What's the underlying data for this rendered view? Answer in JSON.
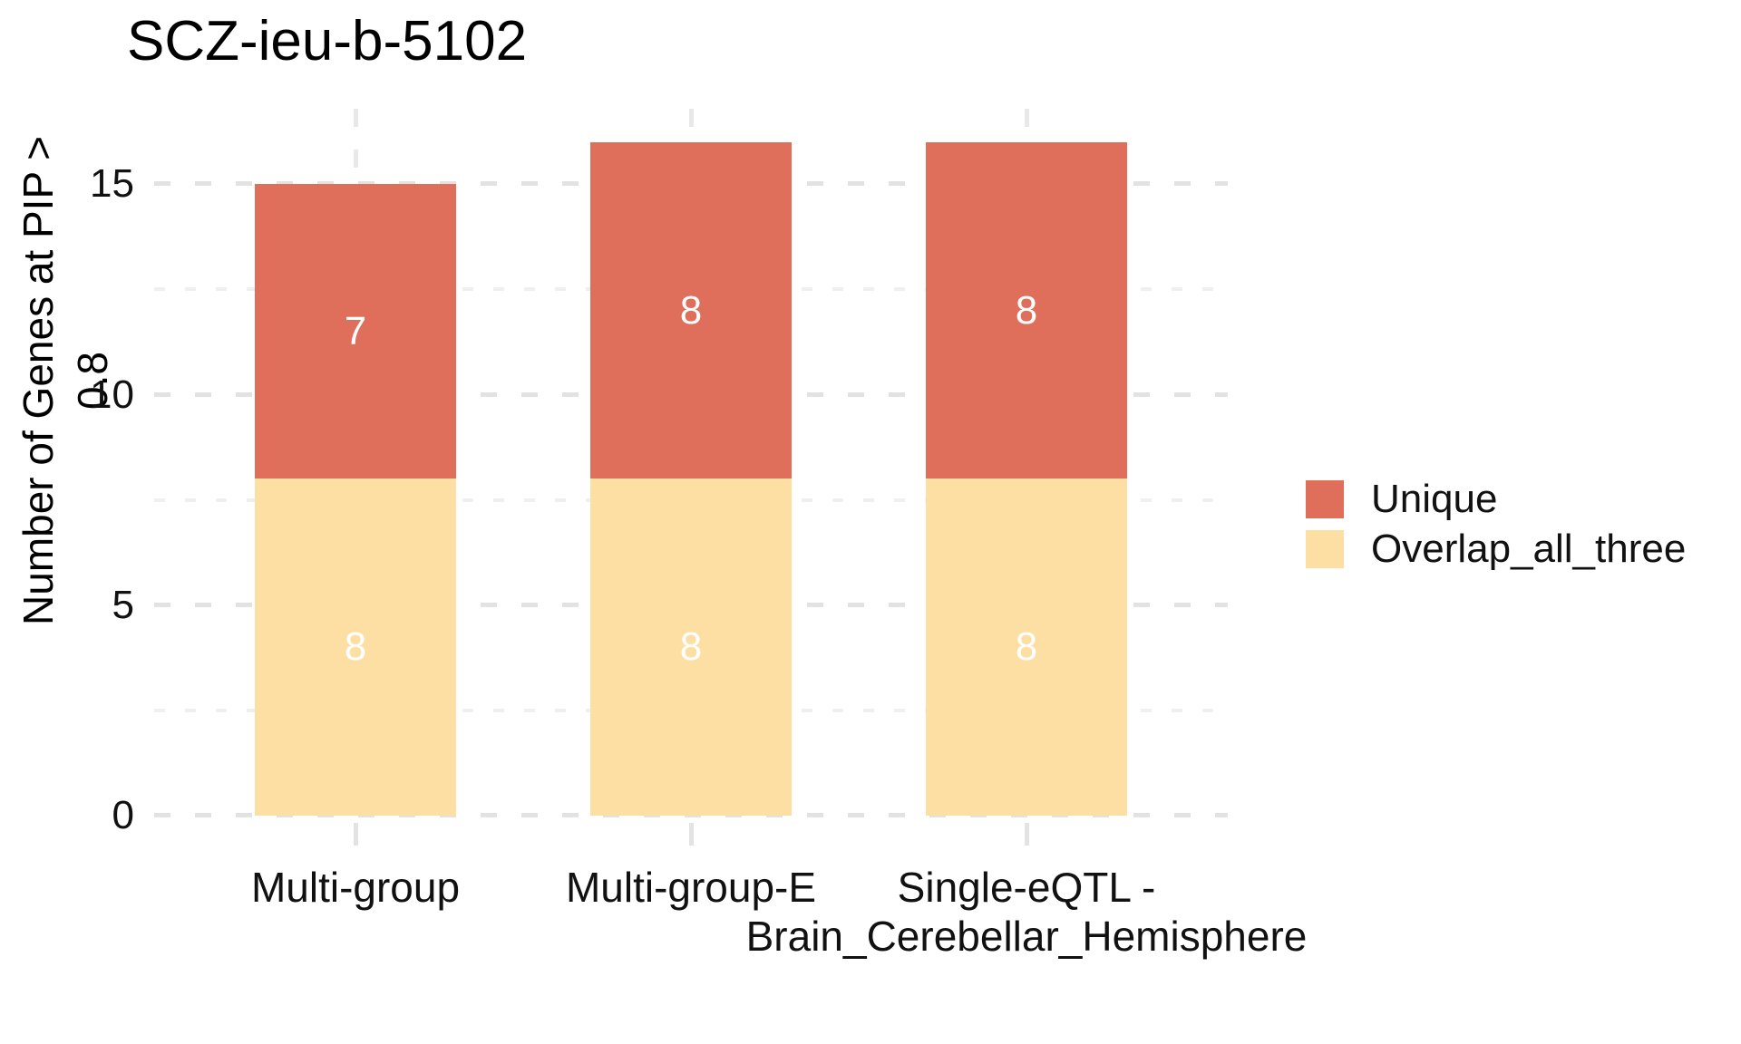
{
  "chart_data": {
    "type": "bar",
    "stacked": true,
    "title": "SCZ-ieu-b-5102",
    "xlabel": "",
    "ylabel": "Number of Genes at PIP > 0.8",
    "categories": [
      "Multi-group",
      "Multi-group-E",
      "Single-eQTL -\nBrain_Cerebellar_Hemisphere"
    ],
    "series": [
      {
        "name": "Overlap_all_three",
        "color": "#FDDFA3",
        "values": [
          8,
          8,
          8
        ]
      },
      {
        "name": "Unique",
        "color": "#DF6E5B",
        "values": [
          7,
          8,
          8
        ]
      }
    ],
    "totals": [
      15,
      16,
      16
    ],
    "bar_value_labels": {
      "Overlap_all_three": [
        "8",
        "8",
        "8"
      ],
      "Unique": [
        "7",
        "8",
        "8"
      ]
    },
    "yticks": [
      "0",
      "5",
      "10",
      "15"
    ],
    "ytick_values": [
      0,
      5,
      10,
      15
    ],
    "minor_tick_values": [
      2.5,
      7.5,
      12.5
    ],
    "ylim": [
      0,
      16.8
    ],
    "grid": "dashed",
    "legend_position": "right",
    "legend_order": [
      "Unique",
      "Overlap_all_three"
    ],
    "colors": {
      "unique": "#DF6E5B",
      "overlap_all_three": "#FDDFA3",
      "grid_major": "#E2E2E2",
      "grid_minor": "#EFEFEF",
      "axis_text": "#111111",
      "bar_label_text": "#FFFFFF",
      "background": "#FFFFFF"
    }
  }
}
